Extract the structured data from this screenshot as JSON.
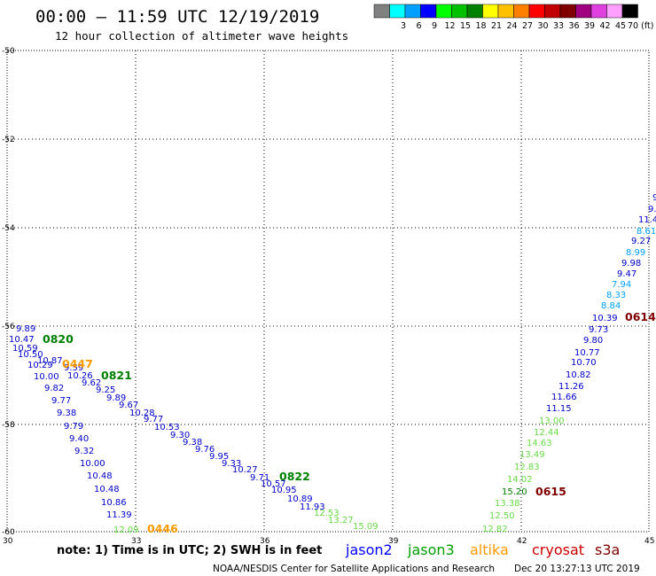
{
  "title": "00:00 – 11:59 UTC 12/19/2019",
  "subtitle": "12 hour collection of altimeter wave heights",
  "legend": {
    "swatches": [
      {
        "label": "",
        "color": "#808080"
      },
      {
        "label": "3",
        "color": "#00ffff"
      },
      {
        "label": "6",
        "color": "#00a0ff"
      },
      {
        "label": "9",
        "color": "#0000ff"
      },
      {
        "label": "12",
        "color": "#00ff00"
      },
      {
        "label": "15",
        "color": "#00c000"
      },
      {
        "label": "18",
        "color": "#008000"
      },
      {
        "label": "21",
        "color": "#ffff00"
      },
      {
        "label": "24",
        "color": "#ffc000"
      },
      {
        "label": "27",
        "color": "#ff8000"
      },
      {
        "label": "30",
        "color": "#ff0000"
      },
      {
        "label": "33",
        "color": "#c00000"
      },
      {
        "label": "36",
        "color": "#800000"
      },
      {
        "label": "39",
        "color": "#a00080"
      },
      {
        "label": "42",
        "color": "#e040e0"
      },
      {
        "label": "45",
        "color": "#ffa0ff"
      },
      {
        "label": "70 (ft)",
        "color": "#000000"
      }
    ]
  },
  "axes": {
    "lat_labels": [
      "-50",
      "-52",
      "-54",
      "-56",
      "-58",
      "-60"
    ],
    "lon_labels": [
      "30",
      "33",
      "36",
      "39",
      "42",
      "45"
    ]
  },
  "observations": {
    "jason2_west": [
      "9.89",
      "10.47",
      "10.59",
      "10.50",
      "10.29",
      "10.00",
      "9.82",
      "9.77",
      "9.38",
      "9.79",
      "9.40",
      "9.32",
      "10.00",
      "10.48",
      "10.48",
      "10.86",
      "11.39"
    ],
    "jason2_diag": [
      "10.87",
      "9.59",
      "10.26",
      "9.62",
      "9.25",
      "9.89",
      "9.67",
      "10.28",
      "9.77",
      "10.53",
      "9.30",
      "9.38",
      "9.76",
      "9.95",
      "9.33",
      "10.27",
      "9.71",
      "10.57",
      "10.95",
      "10.89",
      "11.93"
    ],
    "jason3_diag": [
      "12.53",
      "13.27",
      "15.09"
    ],
    "altika_west": [
      "12.09"
    ],
    "jason2_east": [
      "9.",
      "9.",
      "11.4",
      "8.61",
      "9.27",
      "8.99",
      "9.98",
      "9.47",
      "7.94",
      "8.33",
      "8.84",
      "10.39",
      "9.73",
      "9.80",
      "10.77",
      "10.70",
      "10.82",
      "11.26",
      "11.66",
      "11.15"
    ],
    "jason3_east": [
      "13.00",
      "12.44",
      "14.63",
      "13.49",
      "12.83",
      "14.02",
      "15.20",
      "13.38",
      "12.50",
      "12.82"
    ]
  },
  "pass_times": {
    "jason3_a": "0820",
    "altika_a": "0447",
    "jason3_b": "0821",
    "jason3_c": "0822",
    "altika_b": "0446",
    "cryosat_a": "0614",
    "cryosat_b": "0615"
  },
  "note": "note:  1) Time is in UTC; 2) SWH is in feet",
  "satellites": [
    {
      "name": "jason2",
      "color": "#0000ff"
    },
    {
      "name": "jason3",
      "color": "#00a000"
    },
    {
      "name": "altika",
      "color": "#ff9900"
    },
    {
      "name": "cryosat",
      "color": "#cc0000"
    },
    {
      "name": "s3a",
      "color": "#800000"
    }
  ],
  "footer": {
    "agency": "NOAA/NESDIS Center for Satellite Applications and Research",
    "timestamp": "Dec 20 13:27:13 UTC 2019"
  },
  "colors": {
    "jason2": "#0000cc",
    "jason2_light": "#00a0ff",
    "jason3": "#008000",
    "jason3_light": "#66dd44",
    "altika": "#ff9900",
    "cryosat": "#800000"
  }
}
